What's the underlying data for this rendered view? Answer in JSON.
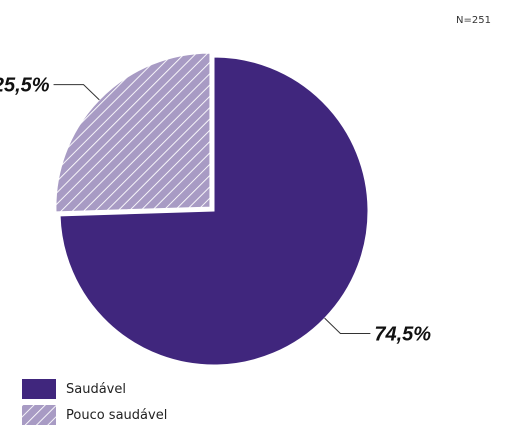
{
  "sample_size": "N=251",
  "colors": {
    "saudavel": "#40267d",
    "pouco_saudavel": "#a89bc4"
  },
  "chart_data": {
    "type": "pie",
    "title": "",
    "slices": [
      {
        "label": "Saudável",
        "value": 74.5,
        "value_label": "74,5%",
        "pattern": "solid",
        "exploded": false
      },
      {
        "label": "Pouco saudável",
        "value": 25.5,
        "value_label": "25,5%",
        "pattern": "hatched",
        "exploded": true
      }
    ],
    "legend_position": "bottom-left"
  }
}
